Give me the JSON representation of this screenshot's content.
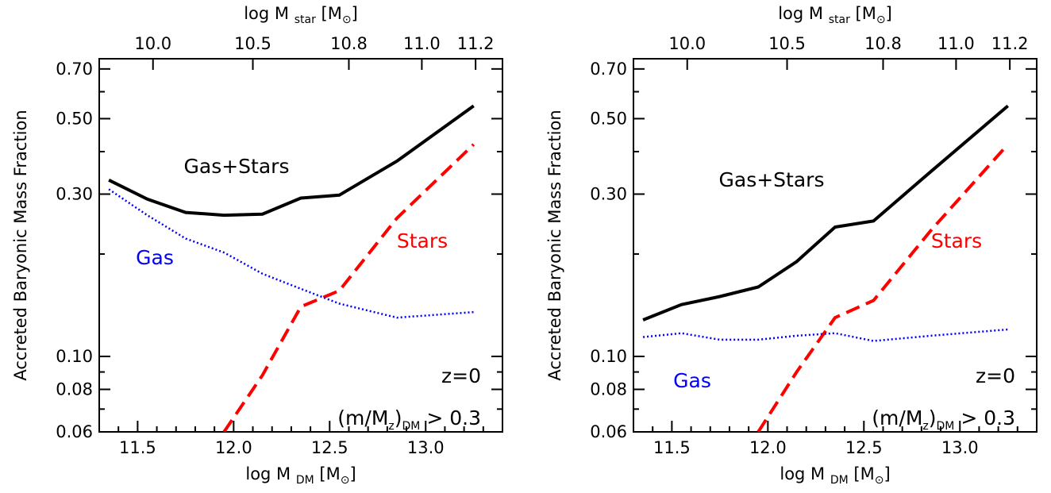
{
  "chart_data": [
    {
      "type": "line",
      "panel": "left",
      "xlabel": "log M_DM [M_⊙]",
      "xlabel_main": "log M",
      "xlabel_sub": "DM",
      "xlabel_unit": "[M",
      "top_xlabel_main": "log M",
      "top_xlabel_sub": "star",
      "top_xlabel_unit": "[M",
      "sun_symbol": "⊙",
      "close_bracket": "]",
      "ylabel": "Accreted Baryonic Mass Fraction",
      "xlim": [
        11.3,
        13.4
      ],
      "ylim": [
        0.06,
        0.75
      ],
      "yscale": "log",
      "x_ticks": [
        "11.5",
        "12.0",
        "12.5",
        "13.0"
      ],
      "x_tick_values": [
        11.5,
        12.0,
        12.5,
        13.0
      ],
      "y_ticks": [
        "0.06",
        "0.08",
        "0.10",
        "0.30",
        "0.50",
        "0.70"
      ],
      "y_tick_values": [
        0.06,
        0.08,
        0.1,
        0.3,
        0.5,
        0.7
      ],
      "top_ticks": [
        "10.0",
        "10.5",
        "10.8",
        "11.0",
        "11.2"
      ],
      "top_tick_values": [
        11.58,
        12.1,
        12.6,
        12.98,
        13.26
      ],
      "series": [
        {
          "name": "Gas+Stars",
          "color": "#000000",
          "style": "solid",
          "x": [
            11.35,
            11.55,
            11.75,
            11.95,
            12.15,
            12.35,
            12.55,
            12.85,
            13.25
          ],
          "y": [
            0.33,
            0.29,
            0.265,
            0.26,
            0.262,
            0.292,
            0.298,
            0.375,
            0.545
          ]
        },
        {
          "name": "Stars",
          "color": "#ff0000",
          "style": "dashed",
          "x": [
            11.95,
            12.15,
            12.35,
            12.55,
            12.85,
            13.25
          ],
          "y": [
            0.06,
            0.088,
            0.14,
            0.156,
            0.255,
            0.42
          ]
        },
        {
          "name": "Gas",
          "color": "#0000ff",
          "style": "dotted",
          "x": [
            11.35,
            11.55,
            11.75,
            11.95,
            12.15,
            12.35,
            12.55,
            12.85,
            13.25
          ],
          "y": [
            0.31,
            0.26,
            0.222,
            0.202,
            0.175,
            0.158,
            0.143,
            0.13,
            0.135
          ]
        }
      ],
      "annotations": {
        "gas_stars": "Gas+Stars",
        "stars": "Stars",
        "gas": "Gas",
        "redshift": "z=0",
        "ratio_main": "(m/M",
        "ratio_sub_z": "z",
        "ratio_close": ")",
        "ratio_sub_dm": "DM",
        "ratio_tail": " > 0.3"
      }
    },
    {
      "type": "line",
      "panel": "right",
      "xlabel": "log M_DM [M_⊙]",
      "xlabel_main": "log M",
      "xlabel_sub": "DM",
      "xlabel_unit": "[M",
      "top_xlabel_main": "log M",
      "top_xlabel_sub": "star",
      "top_xlabel_unit": "[M",
      "sun_symbol": "⊙",
      "close_bracket": "]",
      "ylabel": "Accreted Baryonic Mass Fraction",
      "xlim": [
        11.3,
        13.4
      ],
      "ylim": [
        0.06,
        0.75
      ],
      "yscale": "log",
      "x_ticks": [
        "11.5",
        "12.0",
        "12.5",
        "13.0"
      ],
      "x_tick_values": [
        11.5,
        12.0,
        12.5,
        13.0
      ],
      "y_ticks": [
        "0.06",
        "0.08",
        "0.10",
        "0.30",
        "0.50",
        "0.70"
      ],
      "y_tick_values": [
        0.06,
        0.08,
        0.1,
        0.3,
        0.5,
        0.7
      ],
      "top_ticks": [
        "10.0",
        "10.5",
        "10.8",
        "11.0",
        "11.2"
      ],
      "top_tick_values": [
        11.58,
        12.1,
        12.6,
        12.98,
        13.26
      ],
      "series": [
        {
          "name": "Gas+Stars",
          "color": "#000000",
          "style": "solid",
          "x": [
            11.35,
            11.55,
            11.75,
            11.95,
            12.15,
            12.35,
            12.55,
            12.85,
            13.25
          ],
          "y": [
            0.128,
            0.142,
            0.15,
            0.16,
            0.19,
            0.24,
            0.25,
            0.35,
            0.545
          ]
        },
        {
          "name": "Stars",
          "color": "#ff0000",
          "style": "dashed",
          "x": [
            11.95,
            12.15,
            12.35,
            12.55,
            12.85,
            13.25
          ],
          "y": [
            0.06,
            0.09,
            0.13,
            0.146,
            0.235,
            0.42
          ]
        },
        {
          "name": "Gas",
          "color": "#0000ff",
          "style": "dotted",
          "x": [
            11.35,
            11.55,
            11.75,
            11.95,
            12.15,
            12.35,
            12.55,
            12.85,
            13.25
          ],
          "y": [
            0.114,
            0.117,
            0.112,
            0.112,
            0.115,
            0.117,
            0.111,
            0.115,
            0.12
          ]
        }
      ],
      "annotations": {
        "gas_stars": "Gas+Stars",
        "stars": "Stars",
        "gas": "Gas",
        "redshift": "z=0",
        "ratio_main": "(m/M",
        "ratio_sub_z": "z",
        "ratio_close": ")",
        "ratio_sub_dm": "DM",
        "ratio_tail": " > 0.3"
      }
    }
  ]
}
